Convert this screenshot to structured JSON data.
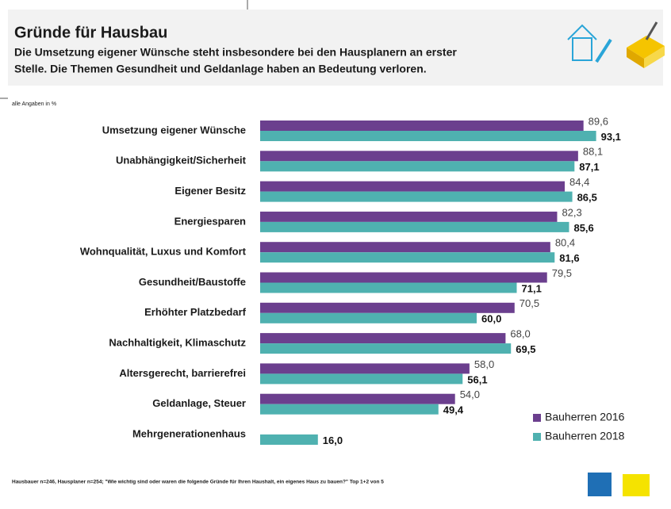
{
  "chart_data": {
    "type": "bar",
    "orientation": "horizontal",
    "title": "Gründe für Hausbau",
    "subtitle": [
      "Die Umsetzung eigener Wünsche steht insbesondere bei den Hausplanern an erster",
      "Stelle. Die Themen Gesundheit und Geldanlage haben an Bedeutung verloren."
    ],
    "note": "alle Angaben in %",
    "footnote": "Hausbauer n=246, Hausplaner n=254; \"Wie wichtig sind oder waren die folgende Gründe für Ihren Haushalt, ein eigenes Haus zu bauen?\" Top 1+2 von 5",
    "categories": [
      "Umsetzung eigener Wünsche",
      "Unabhängigkeit/Sicherheit",
      "Eigener Besitz",
      "Energiesparen",
      "Wohnqualität, Luxus und Komfort",
      "Gesundheit/Baustoffe",
      "Erhöhter Platzbedarf",
      "Nachhaltigkeit, Klimaschutz",
      "Altersgerecht, barrierefrei",
      "Geldanlage, Steuer",
      "Mehrgenerationenhaus"
    ],
    "xlim": [
      0,
      100
    ],
    "legend": "bottom-right",
    "series": [
      {
        "name": "Bauherren 2016",
        "color": "#6b3f8e",
        "values": [
          89.6,
          88.1,
          84.4,
          82.3,
          80.4,
          79.5,
          70.5,
          68.0,
          58.0,
          54.0,
          null
        ],
        "value_labels": [
          "89,6",
          "88,1",
          "84,4",
          "82,3",
          "80,4",
          "79,5",
          "70,5",
          "68,0",
          "58,0",
          "54,0",
          null
        ]
      },
      {
        "name": "Bauherren 2018",
        "color": "#4fb1b0",
        "values": [
          93.1,
          87.1,
          86.5,
          85.6,
          81.6,
          71.1,
          60.0,
          69.5,
          56.1,
          49.4,
          16.0
        ],
        "value_labels": [
          "93,1",
          "87,1",
          "86,5",
          "85,6",
          "81,6",
          "71,1",
          "60,0",
          "69,5",
          "56,1",
          "49,4",
          "16,0"
        ]
      }
    ]
  }
}
